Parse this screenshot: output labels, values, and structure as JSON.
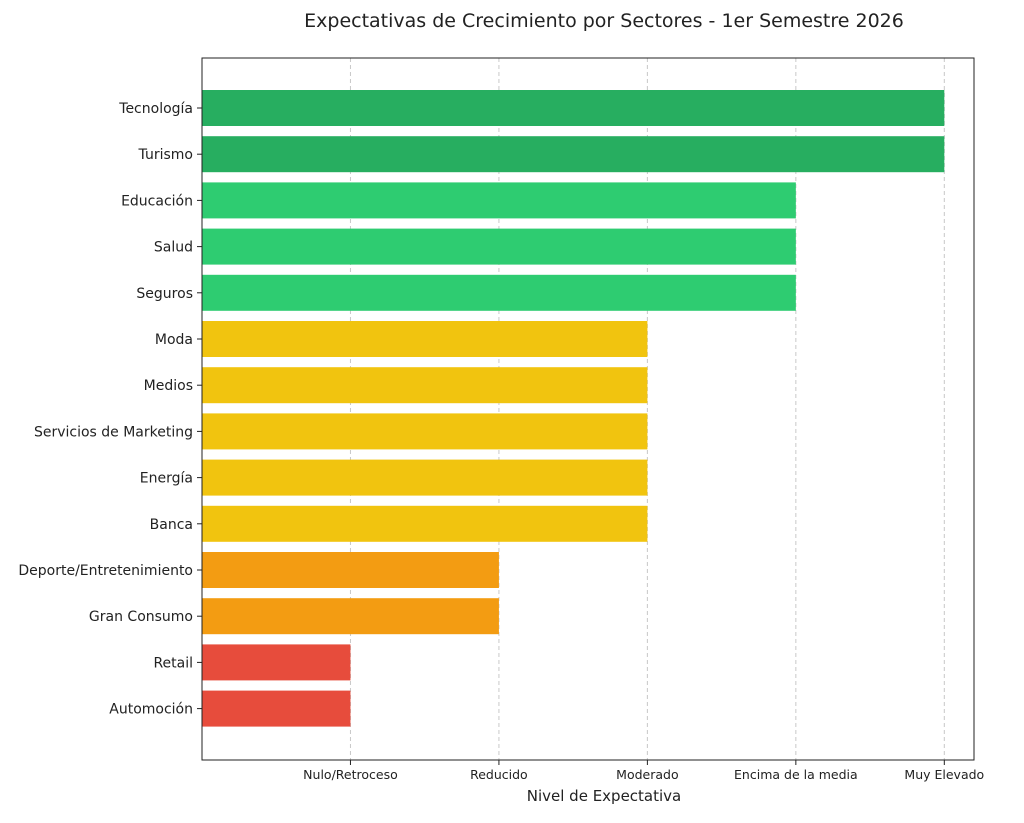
{
  "chart_data": {
    "type": "bar",
    "orientation": "horizontal",
    "title": "Expectativas de Crecimiento por Sectores - 1er Semestre 2026",
    "xlabel": "Nivel de Expectativa",
    "ylabel": "",
    "x_ticks": [
      "Nulo/Retroceso",
      "Reducido",
      "Moderado",
      "Encima de la media",
      "Muy Elevado"
    ],
    "x_tick_values": [
      1,
      2,
      3,
      4,
      5
    ],
    "xlim": [
      0,
      5.2
    ],
    "grid": "x-dashed",
    "legend": "none",
    "categories": [
      "Tecnología",
      "Turismo",
      "Educación",
      "Salud",
      "Seguros",
      "Moda",
      "Medios",
      "Servicios de Marketing",
      "Energía",
      "Banca",
      "Deporte/Entretenimiento",
      "Gran Consumo",
      "Retail",
      "Automoción"
    ],
    "values": [
      5,
      5,
      4,
      4,
      4,
      3,
      3,
      3,
      3,
      3,
      2,
      2,
      1,
      1
    ],
    "level_colors": {
      "1": "#e74c3c",
      "2": "#f39c12",
      "3": "#f1c40f",
      "4": "#2ecc71",
      "5": "#27ae60"
    }
  }
}
